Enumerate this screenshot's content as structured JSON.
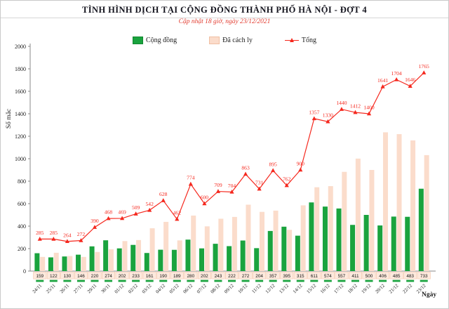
{
  "header": {
    "title": "TÌNH HÌNH DỊCH TẠI CỘNG ĐỒNG THÀNH PHỐ HÀ NỘI - ĐỢT 4",
    "subtitle": "Cập nhật 18 giờ, ngày 23/12/2021"
  },
  "legend": [
    {
      "label": "Cộng đồng",
      "marker": "square",
      "color": "#1aa33e",
      "border": "#11872f"
    },
    {
      "label": "Đã cách ly",
      "marker": "square",
      "color": "#fbdccb",
      "border": "#f0bfa2"
    },
    {
      "label": "Tổng",
      "marker": "line-triangle",
      "color": "#f5281e"
    }
  ],
  "colors": {
    "community_bar": "#1aa33e",
    "quarantine_bar": "#fbdccb",
    "total_line": "#f5281e",
    "axis": "#8a8a8a",
    "label_box_bg": "#fde9dd",
    "label_box_border": "#f3c4a8",
    "text": "#1c1c1c"
  },
  "chart_data": {
    "type": "bar",
    "subtype": "grouped bars + line overlay",
    "title": "TÌNH HÌNH DỊCH TẠI CỘNG ĐỒNG THÀNH PHỐ HÀ NỘI - ĐỢT 4",
    "subtitle": "Cập nhật 18 giờ, ngày 23/12/2021",
    "xlabel": "Ngày",
    "ylabel": "Số mắc",
    "ylim": [
      0,
      2000
    ],
    "yticks": [
      0,
      200,
      400,
      600,
      800,
      1000,
      1200,
      1400,
      1600,
      1800,
      2000
    ],
    "grid": false,
    "legend_position": "top",
    "categories": [
      "24/11",
      "25/11",
      "26/11",
      "27/11",
      "29/11",
      "30/11",
      "01/12",
      "02/12",
      "03/12",
      "04/12",
      "05/12",
      "06/12",
      "07/12",
      "08/12",
      "09/12",
      "10/12",
      "11/12",
      "12/12",
      "13/12",
      "14/12",
      "15/12",
      "16/12",
      "17/12",
      "18/12",
      "19/12",
      "20/12",
      "21/12",
      "22/12",
      "23/12"
    ],
    "series": [
      {
        "name": "Cộng đồng",
        "type": "bar",
        "color": "#1aa33e",
        "labels_shown": true,
        "values": [
          159,
          122,
          130,
          146,
          220,
          274,
          202,
          233,
          161,
          190,
          189,
          280,
          202,
          243,
          222,
          272,
          204,
          357,
          395,
          315,
          611,
          574,
          557,
          411,
          500,
          406,
          485,
          483,
          733
        ]
      },
      {
        "name": "Đã cách ly",
        "type": "bar",
        "color": "#fbdccb",
        "labels_shown": false,
        "values": [
          126,
          163,
          134,
          126,
          170,
          194,
          267,
          276,
          381,
          438,
          273,
          494,
          398,
          466,
          482,
          591,
          527,
          538,
          367,
          585,
          746,
          756,
          883,
          1001,
          900,
          1235,
          1219,
          1163,
          1032
        ]
      },
      {
        "name": "Tổng",
        "type": "line",
        "color": "#f5281e",
        "marker": "triangle",
        "labels_shown": true,
        "values": [
          285,
          285,
          264,
          272,
          390,
          468,
          469,
          509,
          542,
          628,
          462,
          774,
          600,
          709,
          704,
          863,
          731,
          895,
          762,
          900,
          1357,
          1330,
          1440,
          1412,
          1400,
          1641,
          1704,
          1646,
          1765
        ]
      }
    ]
  }
}
